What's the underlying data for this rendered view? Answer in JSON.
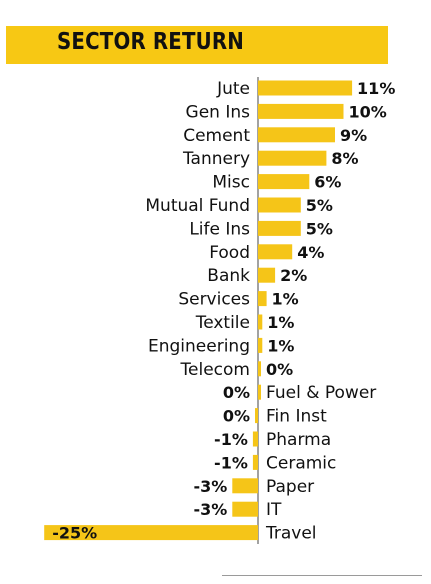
{
  "title": "SECTOR RETURN",
  "colors": {
    "bar": "#f5c518",
    "band": "#f7c814",
    "text": "#111111",
    "axis": "#444444"
  },
  "chart_data": {
    "type": "bar",
    "orientation": "horizontal",
    "title": "SECTOR RETURN",
    "categories": [
      "Jute",
      "Gen Ins",
      "Cement",
      "Tannery",
      "Misc",
      "Mutual Fund",
      "Life Ins",
      "Food",
      "Bank",
      "Services",
      "Textile",
      "Engineering",
      "Telecom",
      "Fuel & Power",
      "Fin Inst",
      "Pharma",
      "Ceramic",
      "Paper",
      "IT",
      "Travel"
    ],
    "values": [
      11,
      10,
      9,
      8,
      6,
      5,
      5,
      4,
      2,
      1,
      0.5,
      0.5,
      0.1,
      0.2,
      -0.2,
      -0.6,
      -0.6,
      -3,
      -3,
      -25
    ],
    "labels": [
      "11%",
      "10%",
      "9%",
      "8%",
      "6%",
      "5%",
      "5%",
      "4%",
      "2%",
      "1%",
      "1%",
      "1%",
      "0%",
      "0%",
      "0%",
      "-1%",
      "-1%",
      "-3%",
      "-3%",
      "-25%"
    ],
    "xlim": [
      -25,
      11
    ],
    "grid": false,
    "legend": "none"
  }
}
